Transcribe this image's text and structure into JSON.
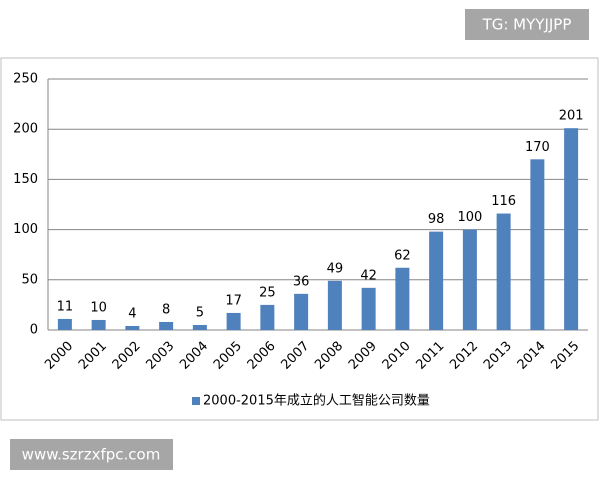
{
  "chart_data": {
    "type": "bar",
    "categories": [
      "2000",
      "2001",
      "2002",
      "2003",
      "2004",
      "2005",
      "2006",
      "2007",
      "2008",
      "2009",
      "2010",
      "2011",
      "2012",
      "2013",
      "2014",
      "2015"
    ],
    "series": [
      {
        "name": "2000-2015年成立的人工智能公司数量",
        "color": "#4f81bd",
        "values": [
          11,
          10,
          4,
          8,
          5,
          17,
          25,
          36,
          49,
          42,
          62,
          98,
          100,
          116,
          170,
          201
        ]
      }
    ],
    "ylim": [
      0,
      250
    ],
    "yticks": [
      0,
      50,
      100,
      150,
      200,
      250
    ],
    "grid": true,
    "legend": "bottom",
    "data_labels": true
  },
  "watermarks": [
    "TG: MYYJJPP",
    "www.szrzxfpc.com"
  ]
}
